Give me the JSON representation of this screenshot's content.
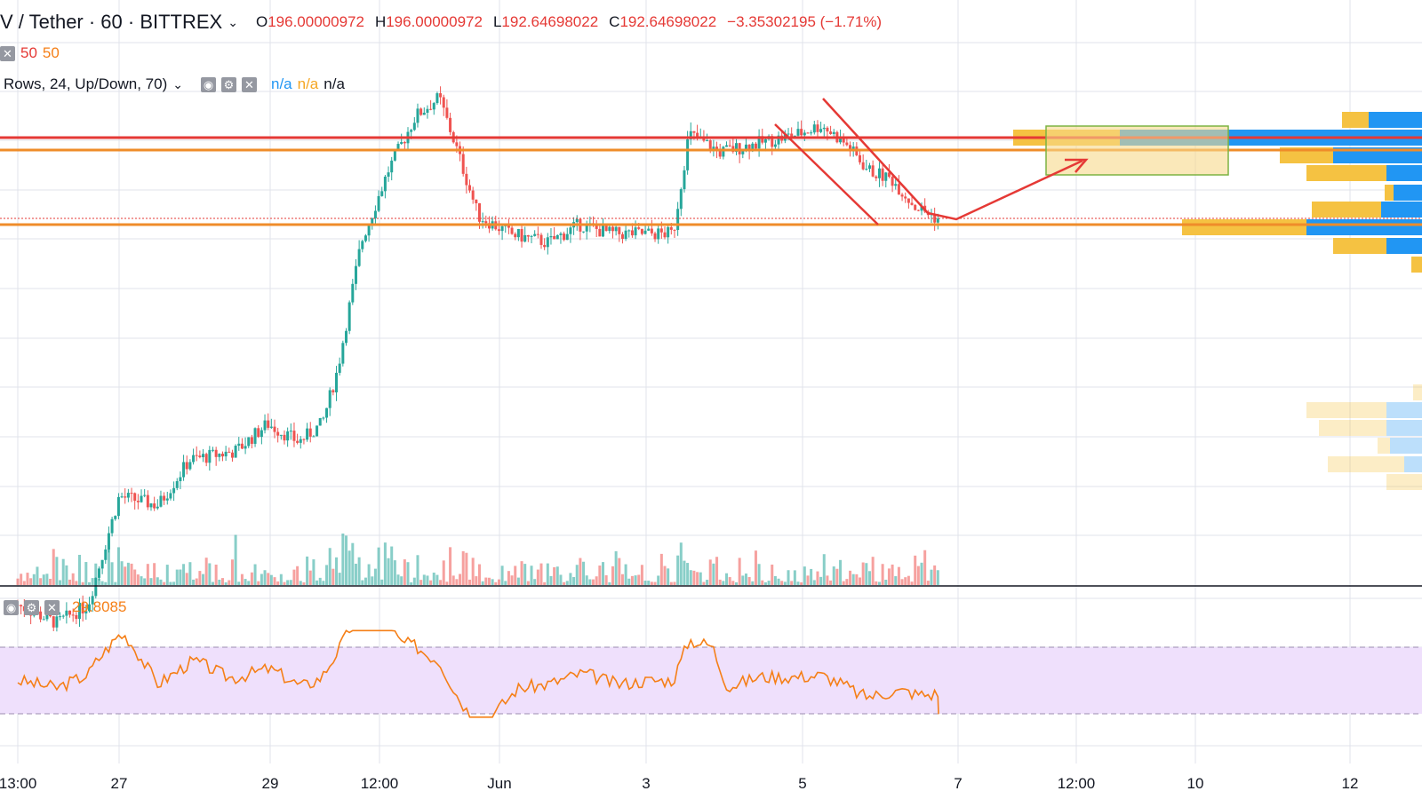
{
  "header": {
    "symbol": "V / Tether · 60 · BITTREX",
    "o_label": "O",
    "o_value": "196.00000972",
    "h_label": "H",
    "h_value": "196.00000972",
    "l_label": "L",
    "l_value": "192.64698022",
    "c_label": "C",
    "c_value": "192.64698022",
    "change": "−3.35302195 (−1.71%)"
  },
  "ma_legend": {
    "v1": "50",
    "v2": "50"
  },
  "vp_legend": {
    "label": "Rows, 24, Up/Down, 70)",
    "v1": "n/a",
    "v2": "n/a",
    "v3": "n/a"
  },
  "rsi_legend": {
    "value": "29.8085"
  },
  "colors": {
    "up": "#26a69a",
    "down": "#ef5350",
    "resistance": "#e53935",
    "support": "#ef8c2a",
    "rsi": "#f57f17",
    "rsi_band": "#e9d8fb",
    "vp_up": "#2196f3",
    "vp_down": "#f5c242"
  },
  "chart_data": {
    "type": "candlestick",
    "x_ticks": [
      "13:00",
      "27",
      "29",
      "12:00",
      "Jun",
      "3",
      "5",
      "7",
      "12:00",
      "10",
      "12"
    ],
    "price_series": [
      {
        "d": 0,
        "c": 160
      },
      {
        "d": 0.5,
        "c": 158
      },
      {
        "d": 0.9,
        "c": 160
      },
      {
        "d": 1.3,
        "c": 172
      },
      {
        "d": 1.8,
        "c": 171
      },
      {
        "d": 2.2,
        "c": 176
      },
      {
        "d": 2.8,
        "c": 177
      },
      {
        "d": 3.2,
        "c": 180
      },
      {
        "d": 3.6,
        "c": 178
      },
      {
        "d": 3.9,
        "c": 180
      },
      {
        "d": 4.1,
        "c": 186
      },
      {
        "d": 4.4,
        "c": 200
      },
      {
        "d": 4.75,
        "c": 208
      },
      {
        "d": 5.1,
        "c": 214
      },
      {
        "d": 5.4,
        "c": 216
      },
      {
        "d": 5.6,
        "c": 211
      },
      {
        "d": 5.9,
        "c": 203
      },
      {
        "d": 6.3,
        "c": 201
      },
      {
        "d": 6.8,
        "c": 200
      },
      {
        "d": 7.2,
        "c": 202
      },
      {
        "d": 7.6,
        "c": 201
      },
      {
        "d": 8.0,
        "c": 201
      },
      {
        "d": 8.4,
        "c": 201
      },
      {
        "d": 8.6,
        "c": 212
      },
      {
        "d": 9.0,
        "c": 210
      },
      {
        "d": 9.5,
        "c": 211
      },
      {
        "d": 10.0,
        "c": 212
      },
      {
        "d": 10.3,
        "c": 213
      },
      {
        "d": 10.6,
        "c": 211
      },
      {
        "d": 10.9,
        "c": 208
      },
      {
        "d": 11.2,
        "c": 207
      },
      {
        "d": 11.5,
        "c": 204
      },
      {
        "d": 11.8,
        "c": 202.6
      }
    ],
    "resistance_line": 212,
    "mid_line": 211,
    "support_line": 202,
    "rsi_value": 29.8085,
    "rsi_band": [
      30,
      70
    ]
  }
}
